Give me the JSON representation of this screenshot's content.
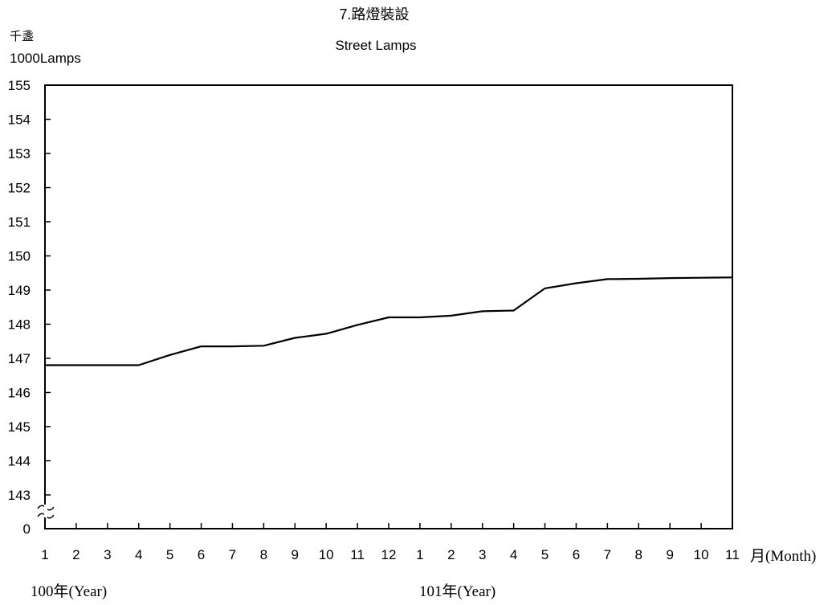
{
  "chart_data": {
    "type": "line",
    "title": "7.路燈裝設",
    "subtitle": "Street Lamps",
    "ylabel_line1": "千盞",
    "ylabel_line2": "1000Lamps",
    "xlabel": "月(Month)",
    "year_labels": [
      "100年(Year)",
      "101年(Year)"
    ],
    "categories": [
      "1",
      "2",
      "3",
      "4",
      "5",
      "6",
      "7",
      "8",
      "9",
      "10",
      "11",
      "12",
      "1",
      "2",
      "3",
      "4",
      "5",
      "6",
      "7",
      "8",
      "9",
      "10",
      "11"
    ],
    "yticks": [
      "155",
      "154",
      "153",
      "152",
      "151",
      "150",
      "149",
      "148",
      "147",
      "146",
      "145",
      "144",
      "143"
    ],
    "y_break_label": "0",
    "ylim": [
      143,
      155
    ],
    "axis_break": true,
    "grid": false,
    "series": [
      {
        "values": [
          146.8,
          146.8,
          146.8,
          146.8,
          147.1,
          147.35,
          147.35,
          147.37,
          147.6,
          147.72,
          147.98,
          148.2,
          148.2,
          148.25,
          148.38,
          148.4,
          149.05,
          149.2,
          149.32,
          149.33,
          149.35,
          149.36,
          149.37
        ]
      }
    ]
  }
}
